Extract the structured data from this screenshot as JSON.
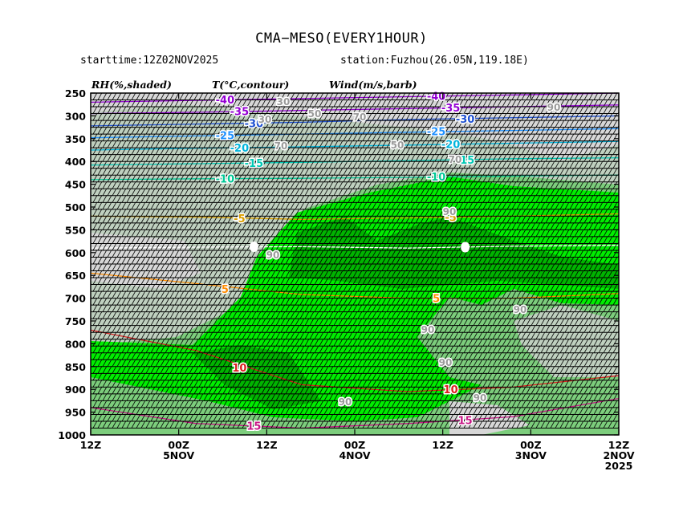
{
  "chart_data": {
    "type": "heatmap",
    "title": "CMA−MESO(EVERY1HOUR)",
    "subtitle_left": "starttime:12Z02NOV2025",
    "subtitle_right": "station:Fuzhou(26.05N,119.18E)",
    "legend": [
      {
        "label": "RH(%,shaded)"
      },
      {
        "label": "T(°C,contour)"
      },
      {
        "label": "Wind(m/s,barb)"
      }
    ],
    "yaxis": {
      "ticks": [
        250,
        300,
        350,
        400,
        450,
        500,
        550,
        600,
        650,
        700,
        750,
        800,
        850,
        900,
        950,
        1000
      ],
      "ylim": [
        250,
        1000
      ],
      "reversed": true
    },
    "xaxis": {
      "reversed": true,
      "ticks": [
        {
          "line1": "12Z",
          "line2": "",
          "line3": ""
        },
        {
          "line1": "00Z",
          "line2": "5NOV",
          "line3": ""
        },
        {
          "line1": "12Z",
          "line2": "",
          "line3": ""
        },
        {
          "line1": "00Z",
          "line2": "4NOV",
          "line3": ""
        },
        {
          "line1": "12Z",
          "line2": "",
          "line3": ""
        },
        {
          "line1": "00Z",
          "line2": "3NOV",
          "line3": ""
        },
        {
          "line1": "12Z",
          "line2": "2NOV",
          "line3": "2025"
        }
      ]
    },
    "rh_levels": [
      {
        "min": 30,
        "color": "#d7d7d7"
      },
      {
        "min": 50,
        "color": "#bfd0bf"
      },
      {
        "min": 70,
        "color": "#7ccd7c"
      },
      {
        "min": 90,
        "color": "#00ee00"
      },
      {
        "min": 95,
        "color": "#00b400"
      }
    ],
    "rh_labels": [
      "30",
      "50",
      "70",
      "90",
      "90",
      "90",
      "90",
      "90",
      "90",
      "90",
      "90",
      "30",
      "50",
      "70",
      "70"
    ],
    "temperature_contours": [
      {
        "value": -40,
        "pressure": [
          270,
          266,
          262,
          258,
          254,
          250
        ],
        "color": "#9400d3"
      },
      {
        "value": -35,
        "pressure": [
          295,
          292,
          288,
          284,
          280,
          276
        ],
        "color": "#9400d3"
      },
      {
        "value": -30,
        "pressure": [
          322,
          318,
          314,
          308,
          304,
          300
        ],
        "color": "#1e50d2"
      },
      {
        "value": -25,
        "pressure": [
          348,
          344,
          340,
          336,
          332,
          328
        ],
        "color": "#1e90ff"
      },
      {
        "value": -20,
        "pressure": [
          375,
          371,
          368,
          364,
          360,
          356
        ],
        "color": "#00b4dc"
      },
      {
        "value": -15,
        "pressure": [
          408,
          405,
          402,
          398,
          394,
          392
        ],
        "color": "#00c8b4"
      },
      {
        "value": -10,
        "pressure": [
          440,
          438,
          437,
          435,
          432,
          430
        ],
        "color": "#00c896"
      },
      {
        "value": -5,
        "pressure": [
          520,
          522,
          527,
          524,
          520,
          515
        ],
        "color": "#dca000"
      },
      {
        "value": 0,
        "pressure": [
          590,
          588,
          587,
          590,
          586,
          584
        ],
        "color": "#ffffff"
      },
      {
        "value": 5,
        "pressure": [
          645,
          668,
          692,
          700,
          700,
          690
        ],
        "color": "#ff8c00"
      },
      {
        "value": 10,
        "pressure": [
          770,
          815,
          890,
          905,
          895,
          870
        ],
        "color": "#dc1e1e"
      },
      {
        "value": 15,
        "pressure": [
          940,
          975,
          985,
          975,
          960,
          920
        ],
        "color": "#c71585"
      }
    ],
    "wind_barb_levels": [
      265,
      280,
      295,
      310,
      325,
      340,
      355,
      370,
      385,
      400,
      415,
      430,
      445,
      460,
      475,
      490,
      505,
      520,
      535,
      550,
      565,
      580,
      595,
      610,
      625,
      640,
      655,
      670,
      685,
      700,
      715,
      730,
      745,
      760,
      775,
      790,
      805,
      820,
      835,
      850,
      865,
      880,
      895,
      910,
      925,
      940,
      955,
      970,
      985
    ]
  }
}
